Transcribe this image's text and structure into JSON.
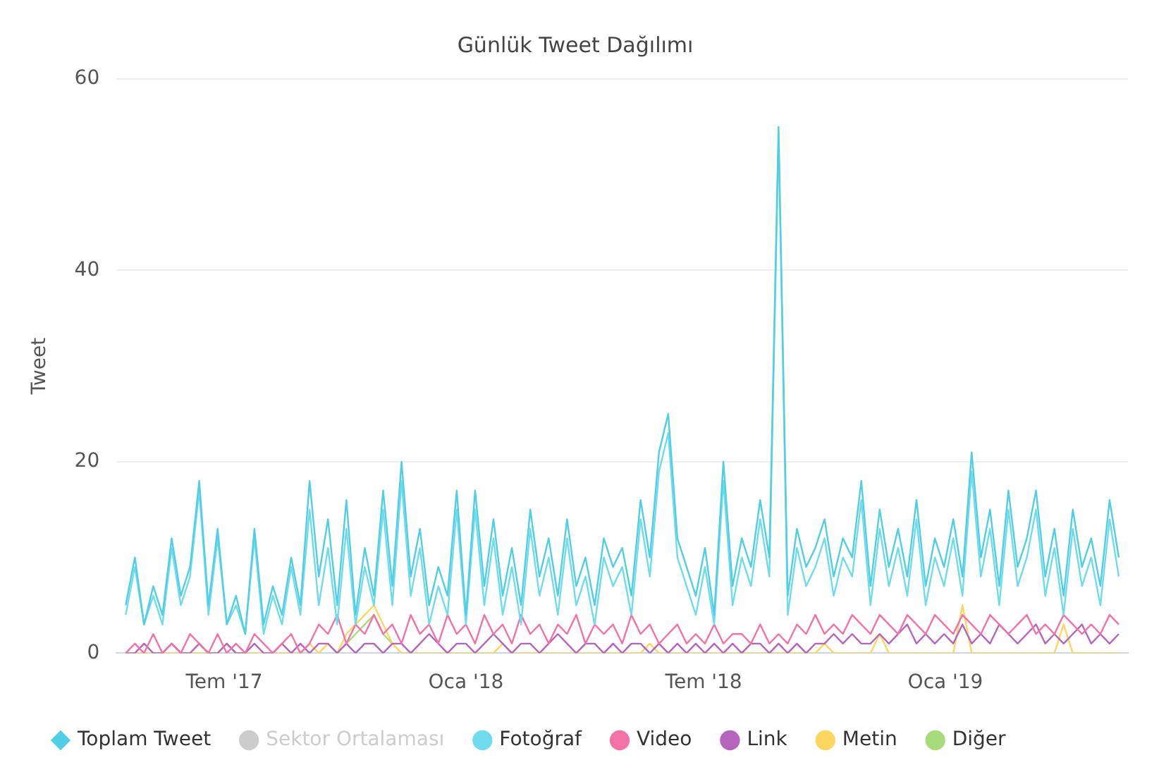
{
  "chart_data": {
    "type": "line",
    "title": "Günlük Tweet Dağılımı",
    "ylabel": "Tweet",
    "legend": "bottom",
    "grid": "y",
    "marker": "none",
    "xlim": [
      "2017-04-10",
      "2019-05-20"
    ],
    "ylim": [
      0,
      60
    ],
    "yticks": [
      0,
      20,
      40,
      60
    ],
    "xticks": [
      {
        "value": "2017-07-01",
        "label": "Tem '17"
      },
      {
        "value": "2018-01-01",
        "label": "Oca '18"
      },
      {
        "value": "2018-07-01",
        "label": "Tem '18"
      },
      {
        "value": "2019-01-01",
        "label": "Oca '19"
      }
    ],
    "x": [
      "2017-04-17",
      "2017-04-24",
      "2017-05-01",
      "2017-05-08",
      "2017-05-15",
      "2017-05-22",
      "2017-05-29",
      "2017-06-05",
      "2017-06-12",
      "2017-06-19",
      "2017-06-26",
      "2017-07-03",
      "2017-07-10",
      "2017-07-17",
      "2017-07-24",
      "2017-07-31",
      "2017-08-07",
      "2017-08-14",
      "2017-08-21",
      "2017-08-28",
      "2017-09-04",
      "2017-09-11",
      "2017-09-18",
      "2017-09-25",
      "2017-10-02",
      "2017-10-09",
      "2017-10-16",
      "2017-10-23",
      "2017-10-30",
      "2017-11-06",
      "2017-11-13",
      "2017-11-20",
      "2017-11-27",
      "2017-12-04",
      "2017-12-11",
      "2017-12-18",
      "2017-12-25",
      "2018-01-01",
      "2018-01-08",
      "2018-01-15",
      "2018-01-22",
      "2018-01-29",
      "2018-02-05",
      "2018-02-12",
      "2018-02-19",
      "2018-02-26",
      "2018-03-05",
      "2018-03-12",
      "2018-03-19",
      "2018-03-26",
      "2018-04-02",
      "2018-04-09",
      "2018-04-16",
      "2018-04-23",
      "2018-04-30",
      "2018-05-07",
      "2018-05-14",
      "2018-05-21",
      "2018-05-28",
      "2018-06-04",
      "2018-06-11",
      "2018-06-18",
      "2018-06-25",
      "2018-07-02",
      "2018-07-09",
      "2018-07-16",
      "2018-07-23",
      "2018-07-30",
      "2018-08-06",
      "2018-08-13",
      "2018-08-20",
      "2018-08-27",
      "2018-09-03",
      "2018-09-10",
      "2018-09-17",
      "2018-09-24",
      "2018-10-01",
      "2018-10-08",
      "2018-10-15",
      "2018-10-22",
      "2018-10-29",
      "2018-11-05",
      "2018-11-12",
      "2018-11-19",
      "2018-11-26",
      "2018-12-03",
      "2018-12-10",
      "2018-12-17",
      "2018-12-24",
      "2018-12-31",
      "2019-01-07",
      "2019-01-14",
      "2019-01-21",
      "2019-01-28",
      "2019-02-04",
      "2019-02-11",
      "2019-02-18",
      "2019-02-25",
      "2019-03-04",
      "2019-03-11",
      "2019-03-18",
      "2019-03-25",
      "2019-04-01",
      "2019-04-08",
      "2019-04-15",
      "2019-04-22",
      "2019-04-29",
      "2019-05-06",
      "2019-05-13"
    ],
    "series": [
      {
        "name": "Toplam Tweet",
        "color": "#4fcfe5",
        "values": [
          5,
          10,
          3,
          7,
          4,
          12,
          6,
          9,
          18,
          5,
          13,
          3,
          6,
          2,
          13,
          3,
          7,
          4,
          10,
          5,
          18,
          8,
          14,
          5,
          16,
          4,
          11,
          6,
          17,
          7,
          20,
          8,
          13,
          5,
          9,
          6,
          17,
          4,
          17,
          7,
          14,
          6,
          11,
          5,
          15,
          8,
          12,
          6,
          14,
          7,
          10,
          5,
          12,
          9,
          11,
          6,
          16,
          10,
          21,
          25,
          12,
          9,
          6,
          11,
          4,
          20,
          7,
          12,
          9,
          16,
          10,
          55,
          6,
          13,
          9,
          11,
          14,
          8,
          12,
          10,
          18,
          7,
          15,
          9,
          13,
          8,
          16,
          7,
          12,
          9,
          14,
          8,
          21,
          10,
          15,
          7,
          17,
          9,
          12,
          17,
          8,
          13,
          6,
          15,
          9,
          12,
          7,
          16,
          10
        ]
      },
      {
        "name": "Sektor Ortalaması",
        "color": "#cccccc",
        "values": [
          null,
          null,
          null,
          null,
          null,
          null,
          null,
          null,
          null,
          null,
          null,
          null,
          null,
          null,
          null,
          null,
          null,
          null,
          null,
          null,
          null,
          null,
          null,
          null,
          null,
          null,
          null,
          null,
          null,
          null,
          null,
          null,
          null,
          null,
          null,
          null,
          null,
          null,
          null,
          null,
          null,
          null,
          null,
          null,
          null,
          null,
          null,
          null,
          null,
          null,
          null,
          null,
          null,
          null,
          null,
          null,
          null,
          null,
          null,
          null,
          null,
          null,
          null,
          null,
          null,
          null,
          null,
          null,
          null,
          null,
          null,
          null,
          null,
          null,
          null,
          null,
          null,
          null,
          null,
          null,
          null,
          null,
          null,
          null,
          null,
          null,
          null,
          null,
          null,
          null,
          null,
          null,
          null,
          null,
          null,
          null,
          null,
          null,
          null,
          null,
          null,
          null,
          null,
          null,
          null,
          null,
          null,
          null,
          null
        ]
      },
      {
        "name": "Fotoğraf",
        "color": "#6fdcee",
        "values": [
          4,
          9,
          3,
          6,
          3,
          11,
          5,
          8,
          17,
          4,
          12,
          3,
          5,
          2,
          12,
          2,
          6,
          3,
          9,
          4,
          15,
          5,
          11,
          3,
          13,
          3,
          9,
          5,
          15,
          5,
          18,
          6,
          11,
          3,
          7,
          4,
          15,
          3,
          15,
          5,
          12,
          4,
          9,
          3,
          13,
          6,
          10,
          4,
          12,
          5,
          8,
          3,
          10,
          7,
          9,
          4,
          14,
          8,
          19,
          23,
          10,
          7,
          4,
          9,
          3,
          18,
          5,
          10,
          7,
          14,
          8,
          54,
          4,
          11,
          7,
          9,
          12,
          6,
          10,
          8,
          16,
          5,
          13,
          7,
          11,
          6,
          14,
          5,
          10,
          7,
          12,
          6,
          19,
          8,
          13,
          5,
          15,
          7,
          10,
          15,
          6,
          11,
          4,
          13,
          7,
          10,
          5,
          14,
          8
        ]
      },
      {
        "name": "Video",
        "color": "#f472a8",
        "values": [
          0,
          1,
          0,
          2,
          0,
          1,
          0,
          2,
          1,
          0,
          2,
          0,
          1,
          0,
          2,
          1,
          0,
          1,
          2,
          0,
          1,
          3,
          2,
          4,
          1,
          3,
          2,
          4,
          2,
          3,
          1,
          4,
          2,
          3,
          1,
          4,
          2,
          3,
          1,
          4,
          2,
          3,
          1,
          4,
          2,
          3,
          1,
          3,
          2,
          4,
          1,
          3,
          2,
          3,
          1,
          4,
          2,
          3,
          1,
          2,
          3,
          1,
          2,
          1,
          3,
          1,
          2,
          2,
          1,
          3,
          1,
          2,
          1,
          3,
          2,
          4,
          2,
          3,
          2,
          4,
          3,
          2,
          4,
          3,
          2,
          4,
          3,
          2,
          4,
          3,
          2,
          4,
          3,
          2,
          4,
          3,
          2,
          3,
          4,
          2,
          3,
          2,
          4,
          3,
          2,
          3,
          2,
          4,
          3
        ]
      },
      {
        "name": "Link",
        "color": "#b565be",
        "values": [
          0,
          0,
          1,
          0,
          0,
          1,
          0,
          0,
          1,
          0,
          0,
          1,
          0,
          0,
          1,
          0,
          0,
          1,
          0,
          1,
          0,
          1,
          1,
          0,
          1,
          0,
          1,
          1,
          0,
          1,
          1,
          0,
          1,
          2,
          1,
          0,
          1,
          1,
          0,
          1,
          2,
          1,
          0,
          1,
          1,
          0,
          1,
          2,
          1,
          0,
          1,
          1,
          0,
          1,
          0,
          1,
          1,
          0,
          1,
          0,
          1,
          0,
          1,
          0,
          1,
          0,
          1,
          0,
          1,
          1,
          0,
          1,
          0,
          1,
          0,
          1,
          1,
          2,
          1,
          2,
          1,
          1,
          2,
          1,
          2,
          3,
          1,
          2,
          1,
          2,
          1,
          3,
          1,
          2,
          1,
          3,
          2,
          1,
          2,
          3,
          1,
          2,
          1,
          2,
          3,
          1,
          2,
          1,
          2
        ]
      },
      {
        "name": "Metin",
        "color": "#fcd65f",
        "values": [
          0,
          0,
          0,
          0,
          0,
          0,
          0,
          0,
          0,
          0,
          0,
          1,
          0,
          0,
          0,
          0,
          0,
          0,
          0,
          0,
          1,
          0,
          1,
          0,
          2,
          3,
          4,
          5,
          3,
          1,
          0,
          0,
          0,
          0,
          0,
          0,
          0,
          0,
          0,
          0,
          0,
          1,
          0,
          0,
          0,
          0,
          0,
          0,
          0,
          0,
          0,
          0,
          0,
          0,
          0,
          0,
          0,
          1,
          0,
          0,
          0,
          0,
          0,
          0,
          0,
          0,
          0,
          0,
          0,
          0,
          0,
          0,
          0,
          0,
          0,
          0,
          1,
          0,
          0,
          0,
          0,
          0,
          2,
          0,
          0,
          0,
          0,
          0,
          0,
          0,
          0,
          5,
          0,
          0,
          0,
          0,
          0,
          0,
          0,
          0,
          0,
          0,
          3,
          0,
          0,
          0,
          0,
          0,
          0
        ]
      },
      {
        "name": "Diğer",
        "color": "#a8dc7a",
        "values": [
          null,
          null,
          null,
          null,
          null,
          null,
          null,
          null,
          null,
          null,
          null,
          null,
          null,
          null,
          null,
          null,
          null,
          null,
          null,
          null,
          null,
          null,
          null,
          null,
          1,
          2,
          3,
          4,
          2,
          1,
          null,
          null,
          null,
          null,
          null,
          null,
          null,
          null,
          null,
          null,
          null,
          null,
          null,
          null,
          null,
          null,
          null,
          null,
          null,
          null,
          null,
          null,
          null,
          null,
          null,
          null,
          null,
          null,
          null,
          null,
          null,
          null,
          null,
          null,
          null,
          null,
          null,
          null,
          null,
          null,
          null,
          null,
          null,
          null,
          null,
          null,
          null,
          null,
          null,
          null,
          null,
          null,
          null,
          null,
          null,
          null,
          null,
          null,
          null,
          null,
          null,
          null,
          null,
          null,
          null,
          null,
          null,
          null,
          null,
          null,
          null,
          null,
          null,
          null,
          null,
          null,
          null,
          null,
          null
        ]
      }
    ]
  }
}
